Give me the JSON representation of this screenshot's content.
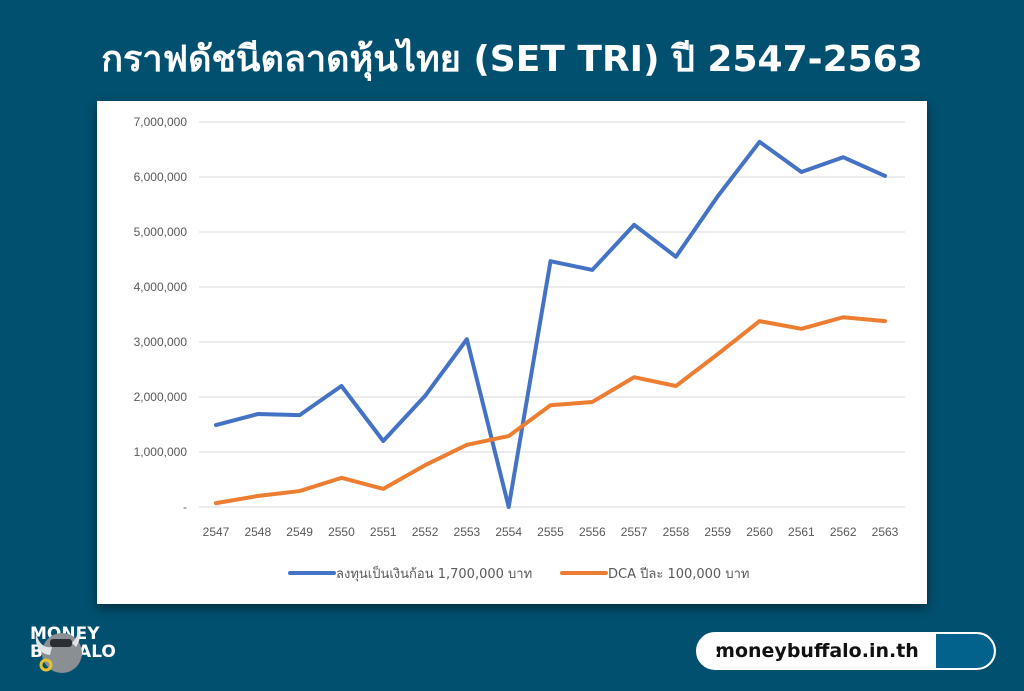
{
  "title": "กราฟดัชนีตลาดหุ้นไทย (SET TRI) ปี 2547-2563",
  "chart_data": {
    "type": "line",
    "title": "กราฟดัชนีตลาดหุ้นไทย (SET TRI) ปี 2547-2563",
    "xlabel": "",
    "ylabel": "",
    "categories": [
      "2547",
      "2548",
      "2549",
      "2550",
      "2551",
      "2552",
      "2553",
      "2554",
      "2555",
      "2556",
      "2557",
      "2558",
      "2559",
      "2560",
      "2561",
      "2562",
      "2563"
    ],
    "ylim": [
      0,
      7000000
    ],
    "yticks": [
      0,
      1000000,
      2000000,
      3000000,
      4000000,
      5000000,
      6000000,
      7000000
    ],
    "ytick_labels": [
      "-",
      "1,000,000",
      "2,000,000",
      "3,000,000",
      "4,000,000",
      "5,000,000",
      "6,000,000",
      "7,000,000"
    ],
    "grid": true,
    "legend_position": "bottom",
    "series": [
      {
        "name": "ลงทุนเป็นเงินก้อน 1,700,000 บาท",
        "color": "#4472c4",
        "values": [
          1490000,
          1690000,
          1670000,
          2200000,
          1200000,
          2020000,
          3050000,
          0,
          4470000,
          4310000,
          5130000,
          4550000,
          5650000,
          6640000,
          6090000,
          6360000,
          6020000
        ]
      },
      {
        "name": "DCA ปีละ 100,000 บาท",
        "color": "#ed7d31",
        "values": [
          70000,
          200000,
          290000,
          530000,
          330000,
          760000,
          1130000,
          1290000,
          1850000,
          1910000,
          2360000,
          2200000,
          2780000,
          3380000,
          3240000,
          3450000,
          3380000
        ]
      }
    ]
  },
  "brand": {
    "line1": "MONEY",
    "line2": "BUFFALO"
  },
  "search": {
    "text": "moneybuffalo.in.th"
  }
}
